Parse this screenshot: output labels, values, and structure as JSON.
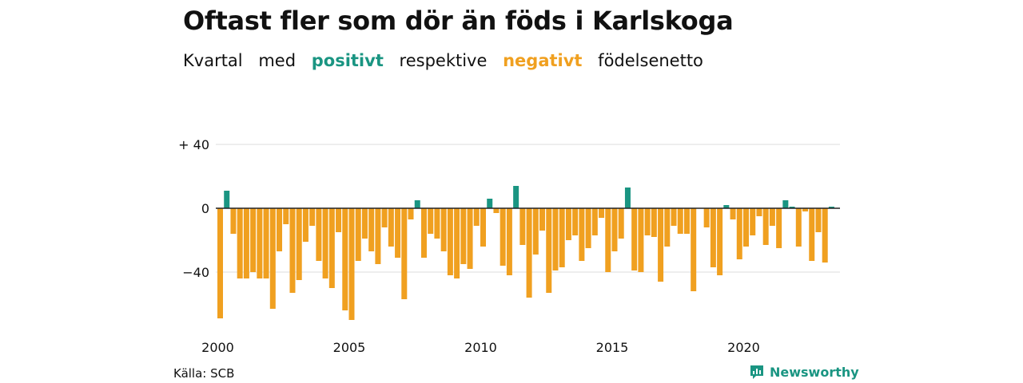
{
  "title": "Oftast fler som dör än föds i Karlskoga",
  "subtitle": {
    "w1": "Kvartal",
    "w2": "med",
    "positive": "positivt",
    "w3": "respektive",
    "negative": "negativt",
    "w4": "födelsenetto"
  },
  "colors": {
    "positive": "#1a9582",
    "negative": "#f0a020",
    "grid": "#dddddd",
    "zero": "#222222"
  },
  "chart_data": {
    "type": "bar",
    "title": "Oftast fler som dör än föds i Karlskoga",
    "ylim": [
      -70,
      40
    ],
    "yticks": [
      40,
      0,
      -40
    ],
    "ytick_labels": [
      "+ 40",
      "0",
      "−40"
    ],
    "xticks": [
      "2000",
      "2005",
      "2010",
      "2015",
      "2020"
    ],
    "x_start": "2000 Q1",
    "grid": true,
    "values": [
      -69,
      11,
      -16,
      -44,
      -44,
      -40,
      -44,
      -44,
      -63,
      -27,
      -10,
      -53,
      -45,
      -21,
      -11,
      -33,
      -44,
      -50,
      -15,
      -64,
      -70,
      -33,
      -19,
      -27,
      -35,
      -12,
      -24,
      -31,
      -57,
      -7,
      5,
      -31,
      -16,
      -19,
      -27,
      -42,
      -44,
      -35,
      -38,
      -11,
      -24,
      6,
      -3,
      -36,
      -42,
      14,
      -23,
      -56,
      -29,
      -14,
      -53,
      -39,
      -37,
      -20,
      -17,
      -33,
      -25,
      -17,
      -6,
      -40,
      -27,
      -19,
      13,
      -39,
      -40,
      -17,
      -18,
      -46,
      -24,
      -11,
      -16,
      -16,
      -52,
      0,
      -12,
      -37,
      -42,
      2,
      -7,
      -32,
      -24,
      -17,
      -5,
      -23,
      -11,
      -25,
      5,
      1,
      -24,
      -2,
      -33,
      -15,
      -34,
      1
    ]
  },
  "source": "Källa: SCB",
  "brand": {
    "name": "Newsworthy",
    "icon": "newsworthy-logo-icon"
  }
}
